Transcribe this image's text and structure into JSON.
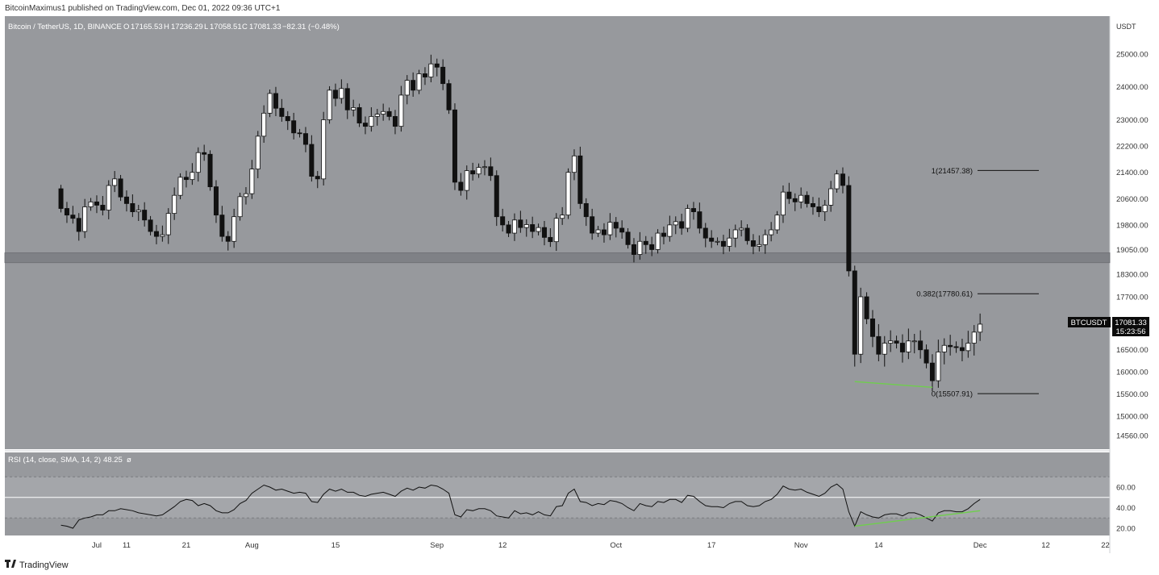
{
  "header": {
    "publisher": "BitcoinMaximus1 published on TradingView.com, Dec 01, 2022 09:36 UTC+1"
  },
  "footer": {
    "brand": "TradingView"
  },
  "colors": {
    "panel_bg": "#97999d",
    "rsi_bg": "#a4a6aa",
    "axis_bg": "#ffffff",
    "candle_up": "#ffffff",
    "candle_down": "#111111",
    "support_band": "#7f8186",
    "divergence": "#6fce4d",
    "price_tag": "#0b0b0b"
  },
  "legend": {
    "symbol": "Bitcoin / TetherUS, 1D, BINANCE",
    "o_label": "O",
    "o_val": "17165.53",
    "h_label": "H",
    "h_val": "17236.29",
    "l_label": "L",
    "l_val": "17058.51",
    "c_label": "C",
    "c_val": "17081.33",
    "change": "−82.31 (−0.48%)"
  },
  "rsi_legend": {
    "label": "RSI (14, close, SMA, 14, 2)",
    "value": "48.25",
    "extra": "ø"
  },
  "price_tag": {
    "symbol": "BTCUSDT",
    "price": "17081.33",
    "countdown": "15:23:56"
  },
  "chart_data": {
    "type": "candlestick",
    "symbol": "BTCUSDT",
    "currency": "USDT",
    "interval": "1D",
    "price_ticks": [
      {
        "label": "25000.00",
        "value": 25000
      },
      {
        "label": "24000.00",
        "value": 24000
      },
      {
        "label": "23000.00",
        "value": 23000
      },
      {
        "label": "22200.00",
        "value": 22200
      },
      {
        "label": "21400.00",
        "value": 21400
      },
      {
        "label": "20600.00",
        "value": 20600
      },
      {
        "label": "19800.00",
        "value": 19800
      },
      {
        "label": "19050.00",
        "value": 19050
      },
      {
        "label": "18300.00",
        "value": 18300
      },
      {
        "label": "17700.00",
        "value": 17700
      },
      {
        "label": "16500.00",
        "value": 16500
      },
      {
        "label": "16000.00",
        "value": 16000
      },
      {
        "label": "15500.00",
        "value": 15500
      },
      {
        "label": "15000.00",
        "value": 15000
      },
      {
        "label": "14560.00",
        "value": 14560
      }
    ],
    "time_ticks": [
      {
        "label": "Jul",
        "day": 6
      },
      {
        "label": "11",
        "day": 11
      },
      {
        "label": "21",
        "day": 21
      },
      {
        "label": "Aug",
        "day": 32
      },
      {
        "label": "15",
        "day": 46
      },
      {
        "label": "Sep",
        "day": 63
      },
      {
        "label": "12",
        "day": 74
      },
      {
        "label": "Oct",
        "day": 93
      },
      {
        "label": "17",
        "day": 109
      },
      {
        "label": "Nov",
        "day": 124
      },
      {
        "label": "14",
        "day": 137
      },
      {
        "label": "Dec",
        "day": 154
      },
      {
        "label": "12",
        "day": 165
      },
      {
        "label": "22",
        "day": 175
      }
    ],
    "support_zone": [
      18650,
      18950
    ],
    "fib_levels": [
      {
        "label": "1(21457.38)",
        "value": 21457.38
      },
      {
        "label": "0.382(17780.61)",
        "value": 17780.61
      },
      {
        "label": "0(15507.91)",
        "value": 15507.91
      }
    ],
    "closes": [
      20300,
      20100,
      20000,
      19600,
      20350,
      20500,
      20400,
      20250,
      21000,
      21200,
      20650,
      20450,
      20200,
      20250,
      19950,
      19600,
      19450,
      19500,
      20150,
      20700,
      21250,
      21180,
      21400,
      22000,
      21950,
      20960,
      20100,
      19450,
      19300,
      20050,
      20660,
      20750,
      21500,
      22500,
      23200,
      23800,
      23350,
      23100,
      22970,
      22600,
      22580,
      22250,
      21280,
      21200,
      23000,
      23900,
      23650,
      23950,
      23300,
      23370,
      22900,
      22800,
      23100,
      23170,
      23250,
      23100,
      22800,
      23750,
      24200,
      23900,
      24400,
      24300,
      24700,
      24600,
      24100,
      23300,
      21100,
      20850,
      21450,
      21350,
      21550,
      21570,
      21300,
      20050,
      19800,
      19550,
      19950,
      19720,
      19810,
      19600,
      19720,
      19420,
      19290,
      20000,
      20100,
      21400,
      21900,
      20450,
      20050,
      19550,
      19650,
      19500,
      19880,
      19700,
      19580,
      19200,
      18900,
      19300,
      19200,
      19050,
      19550,
      19450,
      19800,
      19900,
      19700,
      20300,
      20200,
      19700,
      19400,
      19300,
      19300,
      19150,
      19400,
      19650,
      19700,
      19320,
      19150,
      19200,
      19500,
      19650,
      20100,
      20800,
      20600,
      20500,
      20700,
      20450,
      20350,
      20200,
      20400,
      20900,
      21350,
      21000,
      18400,
      16400,
      17700,
      17200,
      16800,
      16400,
      16650,
      16700,
      16650,
      16450,
      16700,
      16700,
      16500,
      16200,
      15800,
      16450,
      16600,
      16570,
      16550,
      16480,
      16650,
      16900,
      17080
    ],
    "rsi_ticks": [
      {
        "label": "60.00",
        "value": 60
      },
      {
        "label": "40.00",
        "value": 40
      },
      {
        "label": "20.00",
        "value": 20
      }
    ],
    "rsi": [
      23,
      22,
      20,
      28,
      30,
      31,
      33,
      33,
      37,
      37,
      39,
      38,
      37,
      35,
      34,
      33,
      32,
      33,
      37,
      41,
      46,
      48,
      47,
      42,
      44,
      42,
      37,
      35,
      35,
      38,
      44,
      47,
      54,
      58,
      62,
      60,
      57,
      58,
      56,
      54,
      55,
      54,
      46,
      45,
      53,
      58,
      56,
      58,
      55,
      55,
      52,
      51,
      53,
      54,
      55,
      53,
      51,
      56,
      59,
      57,
      60,
      59,
      62,
      61,
      58,
      54,
      33,
      31,
      38,
      37,
      39,
      39,
      37,
      32,
      31,
      30,
      37,
      34,
      35,
      33,
      36,
      33,
      32,
      41,
      42,
      54,
      58,
      46,
      45,
      42,
      44,
      43,
      47,
      46,
      44,
      40,
      37,
      44,
      42,
      41,
      46,
      45,
      48,
      48,
      45,
      52,
      51,
      46,
      42,
      41,
      41,
      40,
      44,
      46,
      46,
      42,
      41,
      42,
      46,
      48,
      53,
      61,
      58,
      57,
      58,
      55,
      53,
      51,
      54,
      60,
      63,
      58,
      36,
      22,
      36,
      33,
      31,
      30,
      33,
      34,
      34,
      32,
      35,
      35,
      33,
      30,
      27,
      35,
      37,
      37,
      36,
      36,
      39,
      44,
      48
    ],
    "annotations": {
      "divergence_note": ""
    }
  }
}
